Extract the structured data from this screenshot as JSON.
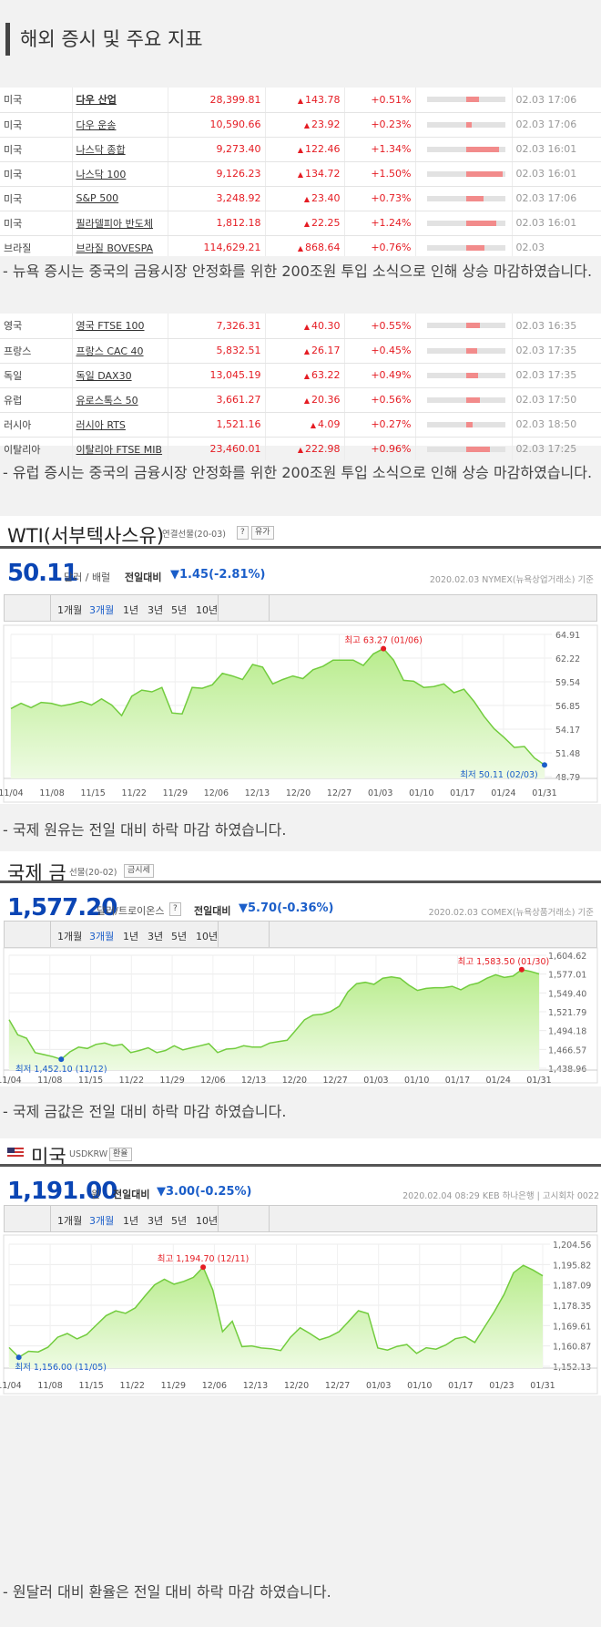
{
  "page_title": "해외 증시 및 주요 지표",
  "us_indices": [
    {
      "country": "미국",
      "name": "다우 산업",
      "value": "28,399.81",
      "change": "143.78",
      "pct": "+0.51%",
      "bar": 0.51,
      "time": "02.03 17:06",
      "bold": true
    },
    {
      "country": "미국",
      "name": "다우 운송",
      "value": "10,590.66",
      "change": "23.92",
      "pct": "+0.23%",
      "bar": 0.23,
      "time": "02.03 17:06",
      "bold": false
    },
    {
      "country": "미국",
      "name": "나스닥 종합",
      "value": "9,273.40",
      "change": "122.46",
      "pct": "+1.34%",
      "bar": 1.34,
      "time": "02.03 16:01",
      "bold": false
    },
    {
      "country": "미국",
      "name": "나스닥 100",
      "value": "9,126.23",
      "change": "134.72",
      "pct": "+1.50%",
      "bar": 1.5,
      "time": "02.03 16:01",
      "bold": false
    },
    {
      "country": "미국",
      "name": "S&P 500",
      "value": "3,248.92",
      "change": "23.40",
      "pct": "+0.73%",
      "bar": 0.73,
      "time": "02.03 17:06",
      "bold": false
    },
    {
      "country": "미국",
      "name": "필라델피아 반도체",
      "value": "1,812.18",
      "change": "22.25",
      "pct": "+1.24%",
      "bar": 1.24,
      "time": "02.03 16:01",
      "bold": false
    },
    {
      "country": "브라질",
      "name": "브라질 BOVESPA",
      "value": "114,629.21",
      "change": "868.64",
      "pct": "+0.76%",
      "bar": 0.76,
      "time": "02.03",
      "bold": false
    }
  ],
  "us_note": "- 뉴욕 증시는 중국의 금융시장 안정화를 위한 200조원 투입 소식으로 인해 상승 마감하였습니다.",
  "eu_indices": [
    {
      "country": "영국",
      "name": "영국 FTSE 100",
      "value": "7,326.31",
      "change": "40.30",
      "pct": "+0.55%",
      "bar": 0.55,
      "time": "02.03 16:35"
    },
    {
      "country": "프랑스",
      "name": "프랑스 CAC 40",
      "value": "5,832.51",
      "change": "26.17",
      "pct": "+0.45%",
      "bar": 0.45,
      "time": "02.03 17:35"
    },
    {
      "country": "독일",
      "name": "독일 DAX30",
      "value": "13,045.19",
      "change": "63.22",
      "pct": "+0.49%",
      "bar": 0.49,
      "time": "02.03 17:35"
    },
    {
      "country": "유럽",
      "name": "유로스톡스 50",
      "value": "3,661.27",
      "change": "20.36",
      "pct": "+0.56%",
      "bar": 0.56,
      "time": "02.03 17:50"
    },
    {
      "country": "러시아",
      "name": "러시아 RTS",
      "value": "1,521.16",
      "change": "4.09",
      "pct": "+0.27%",
      "bar": 0.27,
      "time": "02.03 18:50"
    },
    {
      "country": "이탈리아",
      "name": "이탈리아 FTSE MIB",
      "value": "23,460.01",
      "change": "222.98",
      "pct": "+0.96%",
      "bar": 0.96,
      "time": "02.03 17:25"
    }
  ],
  "eu_note": "- 유럽 증시는 중국의 금융시장 안정화를 위한 200조원 투입 소식으로 인해 상승 마감하였습니다.",
  "up_triangle": "▲",
  "tabs": [
    "1개월",
    "3개월",
    "1년",
    "3년",
    "5년",
    "10년"
  ],
  "wti": {
    "title": "WTI(서부텍사스유)",
    "sub": "연결선물(20-03)",
    "help": "?",
    "btn": "유가",
    "price": "50.11",
    "unit": "달러 / 배럴",
    "prev_label": "전일대비",
    "change": "▼1.45(-2.81%)",
    "source": "2020.02.03 NYMEX(뉴욕상업거래소) 기준",
    "note": "- 국제 원유는 전일 대비 하락 마감 하였습니다."
  },
  "gold": {
    "title": "국제 금",
    "sub": "선물(20-02)",
    "btn": "금시세",
    "price": "1,577.20",
    "unit": "달러/트로이온스",
    "help": "?",
    "prev_label": "전일대비",
    "change": "▼5.70(-0.36%)",
    "source": "2020.02.03 COMEX(뉴욕상품거래소) 기준",
    "note": "- 국제 금값은 전일 대비 하락 마감 하였습니다."
  },
  "usd": {
    "title": "미국",
    "sub": "USDKRW",
    "btn": "환율",
    "price": "1,191.00",
    "unit": "원",
    "prev_label": "전일대비",
    "change": "▼3.00(-0.25%)",
    "source": "2020.02.04 08:29 KEB 하나은행 | 고시회차 0022",
    "note": "- 원달러 대비 환율은 전일 대비 하락 마감 하였습니다."
  },
  "chart_data": [
    {
      "type": "area",
      "name": "WTI",
      "x_ticks": [
        "11/04",
        "11/08",
        "11/15",
        "11/22",
        "11/29",
        "12/06",
        "12/13",
        "12/20",
        "12/27",
        "01/03",
        "01/10",
        "01/17",
        "01/24",
        "01/31"
      ],
      "y_ticks": [
        "64.91",
        "62.22",
        "59.54",
        "56.85",
        "54.17",
        "51.48",
        "48.79"
      ],
      "ylim": [
        48.79,
        64.91
      ],
      "values": [
        56.5,
        57.1,
        56.6,
        57.2,
        57.1,
        56.8,
        57.0,
        57.3,
        56.9,
        57.6,
        56.9,
        55.7,
        57.9,
        58.6,
        58.4,
        58.9,
        56.0,
        55.9,
        58.9,
        58.8,
        59.2,
        60.5,
        60.2,
        59.8,
        61.5,
        61.2,
        59.3,
        59.8,
        60.2,
        59.9,
        60.9,
        61.3,
        62.0,
        62.0,
        62.0,
        61.4,
        62.7,
        63.3,
        62.0,
        59.7,
        59.6,
        58.9,
        59.0,
        59.3,
        58.3,
        58.7,
        57.3,
        55.6,
        54.2,
        53.2,
        52.1,
        52.2,
        50.9,
        50.11
      ],
      "annotations": {
        "high": "최고 63.27 (01/06)",
        "low": "최저 50.11 (02/03)"
      }
    },
    {
      "type": "area",
      "name": "국제 금",
      "x_ticks": [
        "11/04",
        "11/08",
        "11/15",
        "11/22",
        "11/29",
        "12/06",
        "12/13",
        "12/20",
        "12/27",
        "01/03",
        "01/10",
        "01/17",
        "01/24",
        "01/31"
      ],
      "y_ticks": [
        "1,604.62",
        "1,577.01",
        "1,549.40",
        "1,521.79",
        "1,494.18",
        "1,466.57",
        "1,438.96"
      ],
      "ylim": [
        1438.96,
        1604.62
      ],
      "values": [
        1510,
        1488,
        1483,
        1462,
        1459,
        1456,
        1452.1,
        1463,
        1470,
        1468,
        1474,
        1476,
        1472,
        1474,
        1462,
        1465,
        1469,
        1462,
        1465,
        1472,
        1466,
        1469,
        1472,
        1475,
        1462,
        1467,
        1468,
        1472,
        1470,
        1470,
        1476,
        1478,
        1480,
        1495,
        1510,
        1517,
        1518,
        1522,
        1530,
        1551,
        1563,
        1565,
        1562,
        1571,
        1573,
        1571,
        1561,
        1553,
        1556,
        1557,
        1557,
        1559,
        1554,
        1561,
        1564,
        1571,
        1576,
        1572,
        1574,
        1583.5,
        1581,
        1577.2
      ],
      "annotations": {
        "high": "최고 1,583.50 (01/30)",
        "low": "최저 1,452.10 (11/12)"
      }
    },
    {
      "type": "area",
      "name": "미국 USDKRW",
      "x_ticks": [
        "11/04",
        "11/08",
        "11/15",
        "11/22",
        "11/29",
        "12/06",
        "12/13",
        "12/20",
        "12/27",
        "01/03",
        "01/10",
        "01/17",
        "01/23",
        "01/31"
      ],
      "y_ticks": [
        "1,204.56",
        "1,195.82",
        "1,187.09",
        "1,178.35",
        "1,169.61",
        "1,160.87",
        "1,152.13"
      ],
      "ylim": [
        1152.13,
        1204.56
      ],
      "values": [
        1160.2,
        1156.0,
        1158.6,
        1158.3,
        1160.3,
        1164.6,
        1166.2,
        1163.9,
        1165.8,
        1169.9,
        1173.9,
        1175.9,
        1174.9,
        1177.2,
        1182.3,
        1187.1,
        1189.5,
        1187.4,
        1188.6,
        1190.3,
        1194.7,
        1184.9,
        1167.0,
        1171.5,
        1160.6,
        1160.9,
        1160.0,
        1159.7,
        1158.9,
        1164.6,
        1168.7,
        1166.2,
        1163.5,
        1164.8,
        1167.0,
        1171.4,
        1176.0,
        1174.8,
        1160.0,
        1159.1,
        1160.7,
        1161.5,
        1157.7,
        1160.1,
        1159.5,
        1161.3,
        1164.0,
        1164.8,
        1162.4,
        1169.0,
        1175.5,
        1182.9,
        1192.3,
        1195.5,
        1193.5,
        1191.0
      ],
      "annotations": {
        "high": "최고 1,194.70 (12/11)",
        "low": "최저 1,156.00 (11/05)"
      }
    }
  ],
  "colors": {
    "up": "#e51c23",
    "down": "#1b5ec9",
    "area_fill": "#c7f0a4",
    "area_line": "#6fc93b",
    "bar_fill": "#f28b8b"
  }
}
